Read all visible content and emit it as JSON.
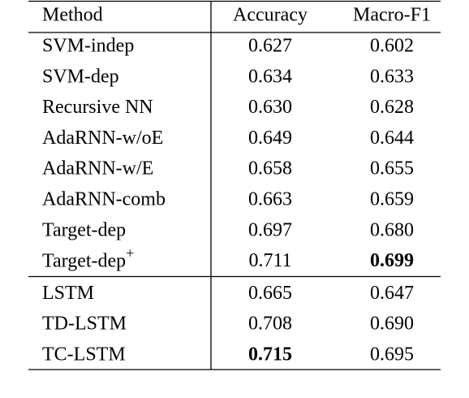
{
  "table": {
    "columns": [
      "Method",
      "Accuracy",
      "Macro-F1"
    ],
    "groups": [
      {
        "rows": [
          {
            "cells": [
              "SVM-indep",
              "0.627",
              "0.602"
            ]
          },
          {
            "cells": [
              "SVM-dep",
              "0.634",
              "0.633"
            ]
          },
          {
            "cells": [
              "Recursive NN",
              "0.630",
              "0.628"
            ]
          },
          {
            "cells": [
              "AdaRNN-w/oE",
              "0.649",
              "0.644"
            ]
          },
          {
            "cells": [
              "AdaRNN-w/E",
              "0.658",
              "0.655"
            ]
          },
          {
            "cells": [
              "AdaRNN-comb",
              "0.663",
              "0.659"
            ]
          },
          {
            "cells": [
              "Target-dep",
              "0.697",
              "0.680"
            ]
          },
          {
            "cells": [
              "Target-dep",
              "0.711",
              "0.699"
            ],
            "sup": "+",
            "bold": 2
          }
        ]
      },
      {
        "rows": [
          {
            "cells": [
              "LSTM",
              "0.665",
              "0.647"
            ]
          },
          {
            "cells": [
              "TD-LSTM",
              "0.708",
              "0.690"
            ]
          },
          {
            "cells": [
              "TC-LSTM",
              "0.715",
              "0.695"
            ],
            "bold": 1
          }
        ]
      }
    ]
  }
}
